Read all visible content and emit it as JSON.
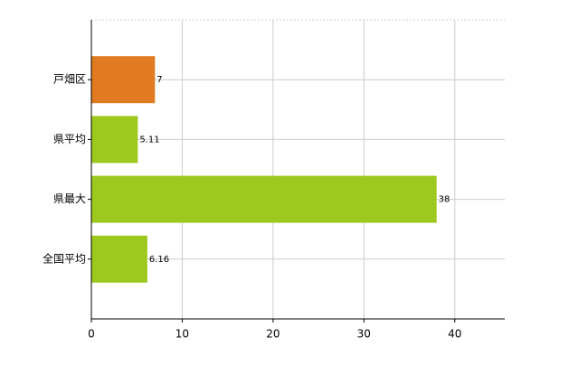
{
  "chart_data": {
    "type": "hbar",
    "categories": [
      "戸畑区",
      "県平均",
      "県最大",
      "全国平均"
    ],
    "values": [
      7,
      5.11,
      38,
      6.16
    ],
    "colors": [
      "#e07b22",
      "#9dc81e",
      "#9dc81e",
      "#9dc81e"
    ],
    "xlim": [
      0,
      45.5
    ],
    "xticks": [
      0,
      10,
      20,
      30,
      40
    ],
    "grid": true
  }
}
